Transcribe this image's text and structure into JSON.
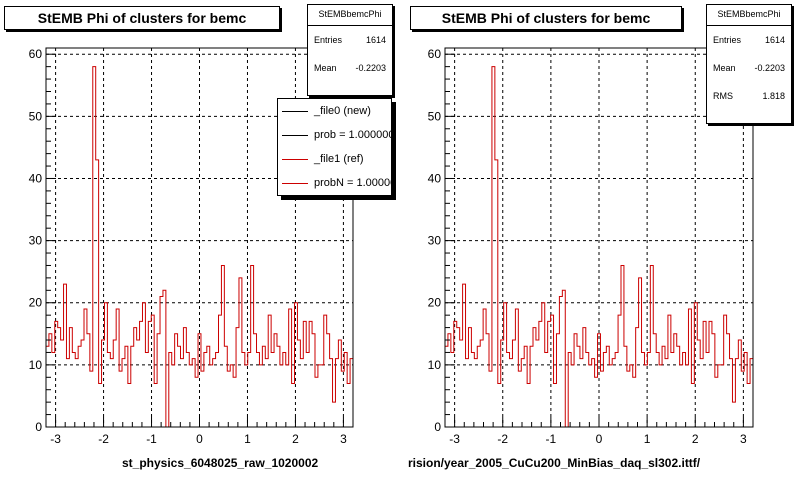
{
  "chart_data": [
    {
      "type": "bar",
      "style": "step-histogram",
      "title": "StEMB Phi of clusters for bemc",
      "xlabel": "st_physics_6048025_raw_1020002",
      "ylabel": "",
      "xlim": [
        -3.2,
        3.2
      ],
      "ylim": [
        0,
        61
      ],
      "xticks": [
        "-3",
        "-2",
        "-1",
        "0",
        "1",
        "2",
        "3"
      ],
      "yticks": [
        "0",
        "10",
        "20",
        "30",
        "40",
        "50",
        "60"
      ],
      "grid": true,
      "stats": {
        "name": "StEMBbemcPhi",
        "rows": [
          {
            "label": "Entries",
            "value": "1614"
          },
          {
            "label": "Mean",
            "value": "-0.2203"
          }
        ]
      },
      "legend": {
        "position": "top-right",
        "entries": [
          "_file0 (new)",
          "prob = 1.000000",
          "_file1 (ref)",
          "probN = 1.000000"
        ]
      },
      "series": [
        {
          "name": "_file1 (ref)",
          "color": "#cc0000",
          "bin_edges": [
            -3.2,
            3.2
          ],
          "values": [
            13,
            15,
            12,
            17,
            16,
            14,
            23,
            11,
            16,
            12,
            11,
            13,
            14,
            19,
            15,
            9,
            58,
            43,
            7,
            14,
            20,
            12,
            11,
            14,
            19,
            9,
            11,
            13,
            7,
            13,
            16,
            14,
            17,
            20,
            12,
            17,
            18,
            7,
            15,
            21,
            22,
            0,
            12,
            10,
            15,
            13,
            11,
            16,
            12,
            10,
            11,
            8,
            15,
            9,
            12,
            13,
            10,
            11,
            12,
            18,
            26,
            13,
            9,
            10,
            8,
            16,
            24,
            12,
            10,
            12,
            26,
            15,
            12,
            10,
            13,
            11,
            18,
            12,
            15,
            13,
            10,
            12,
            10,
            19,
            7,
            20,
            14,
            11,
            17,
            12,
            17,
            15,
            8,
            10,
            10,
            18,
            15,
            11,
            4,
            11,
            14,
            9,
            12,
            7,
            11
          ]
        }
      ]
    },
    {
      "type": "bar",
      "style": "step-histogram",
      "title": "StEMB Phi of clusters for bemc",
      "xlabel": "rision/year_2005_CuCu200_MinBias_daq_sl302.ittf/",
      "ylabel": "",
      "xlim": [
        -3.2,
        3.2
      ],
      "ylim": [
        0,
        61
      ],
      "xticks": [
        "-3",
        "-2",
        "-1",
        "0",
        "1",
        "2",
        "3"
      ],
      "yticks": [
        "0",
        "10",
        "20",
        "30",
        "40",
        "50",
        "60"
      ],
      "grid": true,
      "stats": {
        "name": "StEMBbemcPhi",
        "rows": [
          {
            "label": "Entries",
            "value": "1614"
          },
          {
            "label": "Mean",
            "value": "-0.2203"
          },
          {
            "label": "RMS",
            "value": "1.818"
          }
        ]
      },
      "series": [
        {
          "name": "",
          "color": "#cc0000",
          "bin_edges": [
            -3.2,
            3.2
          ],
          "values": [
            13,
            15,
            12,
            17,
            16,
            14,
            23,
            11,
            16,
            12,
            11,
            13,
            14,
            19,
            15,
            9,
            58,
            43,
            7,
            14,
            20,
            12,
            11,
            14,
            19,
            9,
            11,
            13,
            7,
            13,
            16,
            14,
            17,
            20,
            12,
            17,
            18,
            7,
            15,
            21,
            22,
            0,
            12,
            10,
            15,
            13,
            11,
            16,
            12,
            10,
            11,
            8,
            15,
            9,
            12,
            13,
            10,
            11,
            12,
            18,
            26,
            13,
            9,
            10,
            8,
            16,
            24,
            12,
            10,
            12,
            26,
            15,
            12,
            10,
            13,
            11,
            18,
            12,
            15,
            13,
            10,
            12,
            10,
            19,
            7,
            20,
            14,
            11,
            17,
            12,
            17,
            15,
            8,
            10,
            10,
            18,
            15,
            11,
            4,
            11,
            14,
            9,
            12,
            7,
            11
          ]
        }
      ]
    }
  ]
}
